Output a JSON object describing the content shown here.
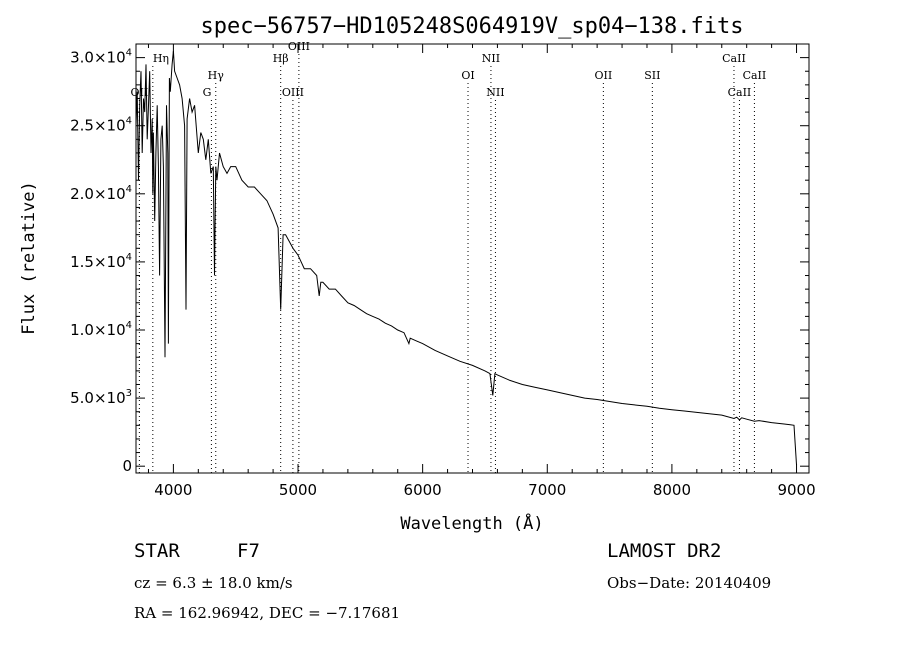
{
  "chart_data": {
    "type": "line",
    "title": "spec−56757−HD105248S064919V_sp04−138.fits",
    "xlabel": "Wavelength (Å)",
    "ylabel": "Flux (relative)",
    "xlim": [
      3700,
      9100
    ],
    "ylim": [
      -500,
      31000
    ],
    "x_ticks": [
      4000,
      5000,
      6000,
      7000,
      8000,
      9000
    ],
    "x_tick_labels": [
      "4000",
      "5000",
      "6000",
      "7000",
      "8000",
      "9000"
    ],
    "y_ticks": [
      0,
      5000,
      10000,
      15000,
      20000,
      25000,
      30000
    ],
    "y_tick_labels": [
      {
        "mant": "0",
        "exp": ""
      },
      {
        "mant": "5.0×10",
        "exp": "3"
      },
      {
        "mant": "1.0×10",
        "exp": "4"
      },
      {
        "mant": "1.5×10",
        "exp": "4"
      },
      {
        "mant": "2.0×10",
        "exp": "4"
      },
      {
        "mant": "2.5×10",
        "exp": "4"
      },
      {
        "mant": "3.0×10",
        "exp": "4"
      }
    ],
    "series": [
      {
        "color": "#000000",
        "x": [
          3700,
          3710,
          3720,
          3730,
          3740,
          3750,
          3760,
          3770,
          3780,
          3790,
          3800,
          3810,
          3820,
          3830,
          3835,
          3840,
          3850,
          3860,
          3870,
          3880,
          3889,
          3900,
          3910,
          3920,
          3933,
          3945,
          3955,
          3960,
          3968,
          3975,
          3990,
          4000,
          4010,
          4030,
          4050,
          4070,
          4090,
          4101,
          4110,
          4130,
          4150,
          4170,
          4200,
          4220,
          4240,
          4260,
          4280,
          4300,
          4320,
          4330,
          4340,
          4350,
          4370,
          4400,
          4430,
          4460,
          4500,
          4550,
          4600,
          4650,
          4700,
          4750,
          4800,
          4840,
          4861,
          4880,
          4900,
          4930,
          4960,
          5000,
          5050,
          5100,
          5150,
          5170,
          5183,
          5200,
          5250,
          5300,
          5350,
          5400,
          5450,
          5500,
          5550,
          5600,
          5650,
          5700,
          5750,
          5800,
          5850,
          5890,
          5900,
          5950,
          6000,
          6100,
          6200,
          6300,
          6400,
          6500,
          6540,
          6563,
          6580,
          6600,
          6700,
          6800,
          6900,
          7000,
          7100,
          7200,
          7300,
          7400,
          7500,
          7600,
          7700,
          7800,
          7900,
          8000,
          8100,
          8200,
          8300,
          8400,
          8498,
          8520,
          8542,
          8560,
          8600,
          8662,
          8700,
          8800,
          8900,
          8950,
          8980,
          8990,
          9000
        ],
        "y": [
          25000,
          27500,
          21000,
          26500,
          29000,
          23000,
          27000,
          26000,
          29500,
          24000,
          26500,
          29000,
          23000,
          25500,
          20000,
          24500,
          18000,
          23000,
          26500,
          22000,
          14000,
          24000,
          25000,
          22000,
          8000,
          26500,
          23000,
          9000,
          28500,
          27500,
          29500,
          30500,
          29000,
          28500,
          28000,
          27000,
          25000,
          11500,
          25500,
          27000,
          26000,
          26500,
          23000,
          24500,
          24000,
          22500,
          24000,
          21500,
          22000,
          14000,
          22000,
          21000,
          23000,
          22000,
          21500,
          22000,
          22000,
          21000,
          20500,
          20500,
          20000,
          19500,
          18500,
          17500,
          11500,
          17000,
          17000,
          16500,
          16000,
          15500,
          14500,
          14500,
          14000,
          12500,
          13500,
          13500,
          13000,
          13000,
          12500,
          12000,
          11800,
          11500,
          11200,
          11000,
          10800,
          10500,
          10300,
          10000,
          9800,
          9000,
          9400,
          9200,
          9000,
          8500,
          8100,
          7700,
          7400,
          7000,
          6800,
          5200,
          6800,
          6700,
          6300,
          6000,
          5800,
          5600,
          5400,
          5200,
          5000,
          4900,
          4750,
          4600,
          4500,
          4400,
          4250,
          4150,
          4050,
          3950,
          3850,
          3750,
          3500,
          3600,
          3400,
          3550,
          3450,
          3300,
          3350,
          3200,
          3100,
          3050,
          3000,
          1500,
          100
        ]
      }
    ],
    "lines": [
      {
        "name": "Hη",
        "x": 3835,
        "row": 1,
        "anchor": "start"
      },
      {
        "name": "OII",
        "x": 3727,
        "row": 3,
        "anchor": "middle"
      },
      {
        "name": "Hγ",
        "x": 4340,
        "row": 2,
        "anchor": "middle"
      },
      {
        "name": "G",
        "x": 4305,
        "row": 3,
        "anchor": "end"
      },
      {
        "name": "Hβ",
        "x": 4861,
        "row": 1,
        "anchor": "middle"
      },
      {
        "name": "OIII",
        "x": 4959,
        "row": 3,
        "anchor": "middle"
      },
      {
        "name": "OIII",
        "x": 5007,
        "row": 0,
        "anchor": "middle"
      },
      {
        "name": "OI",
        "x": 6364,
        "row": 2,
        "anchor": "middle"
      },
      {
        "name": "NII",
        "x": 6548,
        "row": 1,
        "anchor": "middle"
      },
      {
        "name": "NII",
        "x": 6584,
        "row": 3,
        "anchor": "middle"
      },
      {
        "name": "OII",
        "x": 7450,
        "row": 2,
        "anchor": "middle"
      },
      {
        "name": "SII",
        "x": 7843,
        "row": 2,
        "anchor": "middle"
      },
      {
        "name": "CaII",
        "x": 8498,
        "row": 1,
        "anchor": "middle"
      },
      {
        "name": "CaII",
        "x": 8542,
        "row": 3,
        "anchor": "middle"
      },
      {
        "name": "CaII",
        "x": 8662,
        "row": 2,
        "anchor": "middle"
      }
    ],
    "grid": false,
    "legend": "none"
  },
  "info": {
    "object_class": "STAR",
    "subclass": "F7",
    "cz": "cz = 6.3 ± 18.0 km/s",
    "coords": "RA = 162.96942, DEC =  −7.17681",
    "survey": "LAMOST DR2",
    "obs_date": "Obs−Date: 20140409"
  }
}
